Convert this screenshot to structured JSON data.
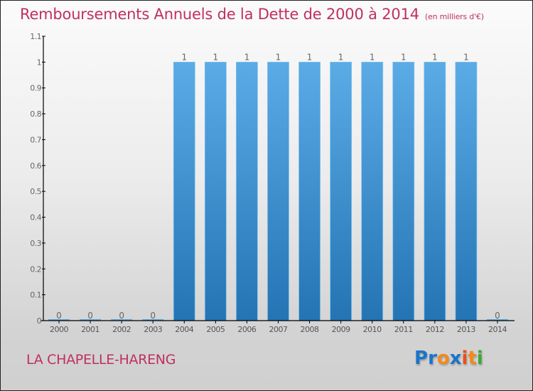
{
  "header": {
    "title": "Remboursements Annuels de la Dette de 2000 à 2014",
    "unit": "(en milliers d'€)"
  },
  "footer": {
    "commune": "LA CHAPELLE-HARENG",
    "logo_letters": [
      {
        "char": "P",
        "color": "#1a75c9"
      },
      {
        "char": "r",
        "color": "#1a75c9"
      },
      {
        "char": "o",
        "color": "#f28a1a"
      },
      {
        "char": "x",
        "color": "#1a75c9"
      },
      {
        "char": "i",
        "color": "#e8501a"
      },
      {
        "char": "t",
        "color": "#f28a1a"
      },
      {
        "char": "i",
        "color": "#3aa83a"
      }
    ]
  },
  "colors": {
    "title": "#c0305f",
    "bar_top": "#5aabe6",
    "bar_bottom": "#2474b4",
    "axis": "#000000",
    "label": "#555555"
  },
  "chart_data": {
    "type": "bar",
    "title": "Remboursements Annuels de la Dette de 2000 à 2014",
    "subtitle": "(en milliers d'€)",
    "xlabel": "",
    "ylabel": "",
    "categories": [
      "2000",
      "2001",
      "2002",
      "2003",
      "2004",
      "2005",
      "2006",
      "2007",
      "2008",
      "2009",
      "2010",
      "2011",
      "2012",
      "2013",
      "2014"
    ],
    "values": [
      0,
      0,
      0,
      0,
      1,
      1,
      1,
      1,
      1,
      1,
      1,
      1,
      1,
      1,
      0
    ],
    "data_labels": [
      "0",
      "0",
      "0",
      "0",
      "1",
      "1",
      "1",
      "1",
      "1",
      "1",
      "1",
      "1",
      "1",
      "1",
      "0"
    ],
    "ylim": [
      0,
      1.1
    ],
    "yticks": [
      0,
      0.1,
      0.2,
      0.3,
      0.4,
      0.5,
      0.6,
      0.7,
      0.8,
      0.9,
      1,
      1.1
    ],
    "ytick_labels": [
      "0",
      "0.1",
      "0.2",
      "0.3",
      "0.4",
      "0.5",
      "0.6",
      "0.7",
      "0.8",
      "0.9",
      "1",
      "1.1"
    ],
    "grid": false,
    "legend": "none"
  }
}
